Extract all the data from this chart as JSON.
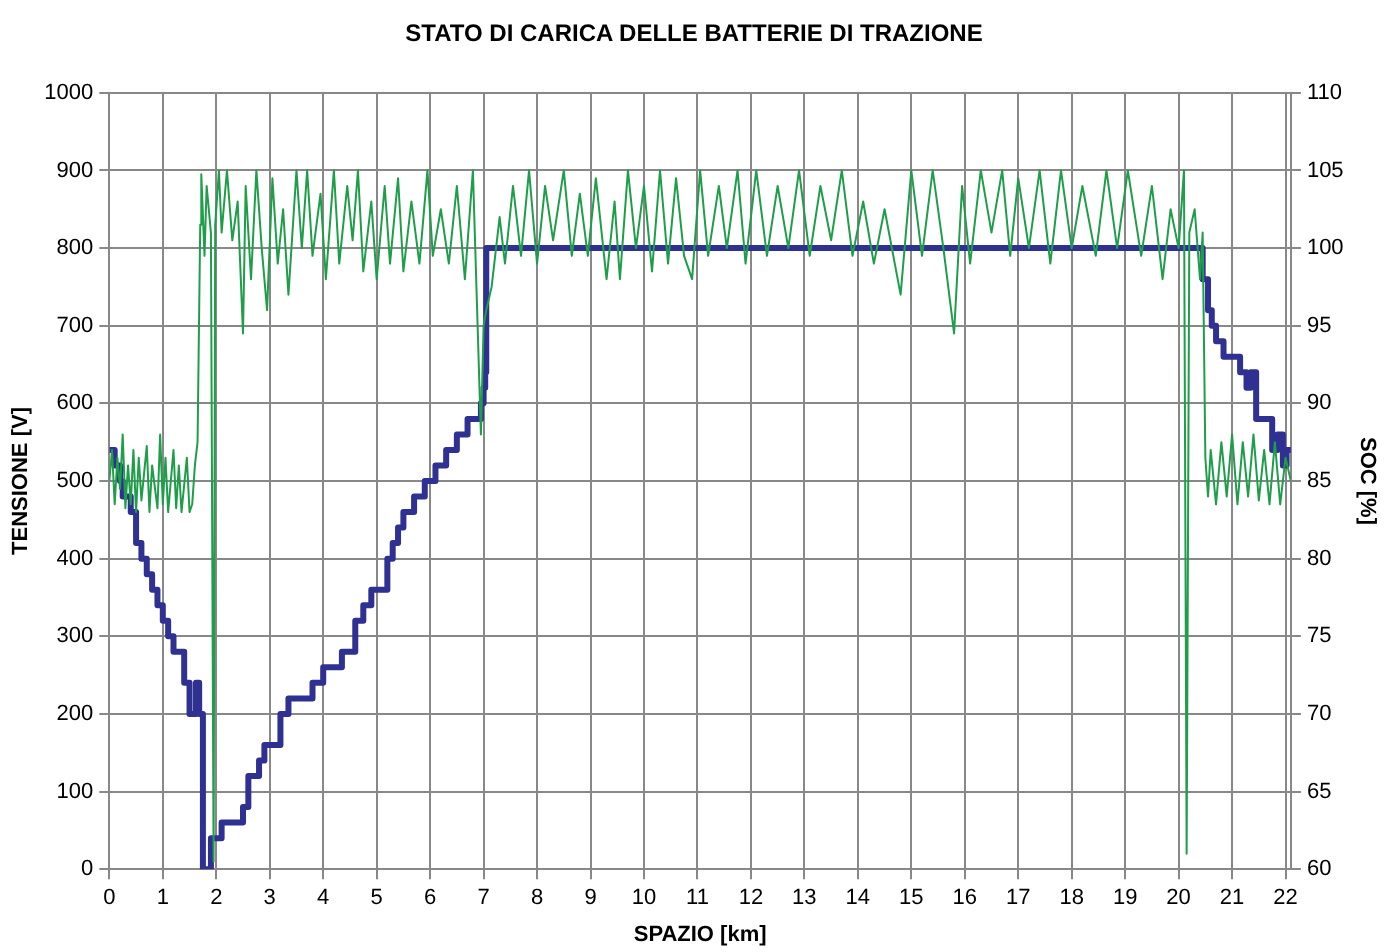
{
  "chart_data": {
    "type": "line",
    "title": "STATO DI CARICA DELLE BATTERIE DI TRAZIONE",
    "xlabel": "SPAZIO [km]",
    "ylabel": "TENSIONE [V]",
    "y2label": "SOC [%]",
    "xlim": [
      0,
      22.1
    ],
    "xticks": [
      0,
      1,
      2,
      3,
      4,
      5,
      6,
      7,
      8,
      9,
      10,
      11,
      12,
      13,
      14,
      15,
      16,
      17,
      18,
      19,
      20,
      21,
      22
    ],
    "ylim": [
      0,
      1000
    ],
    "yticks": [
      0,
      100,
      200,
      300,
      400,
      500,
      600,
      700,
      800,
      900,
      1000
    ],
    "y2lim": [
      60,
      110
    ],
    "y2ticks": [
      60,
      65,
      70,
      75,
      80,
      85,
      90,
      95,
      100,
      105,
      110
    ],
    "grid": true,
    "legend": false,
    "marker": "none",
    "line_style": "solid",
    "series": [
      {
        "type": "line",
        "color": "#1f9e4a",
        "x": [
          0,
          0.05,
          0.1,
          0.15,
          0.2,
          0.25,
          0.3,
          0.35,
          0.4,
          0.45,
          0.5,
          0.55,
          0.6,
          0.7,
          0.75,
          0.8,
          0.9,
          0.95,
          1.0,
          1.05,
          1.1,
          1.2,
          1.25,
          1.3,
          1.35,
          1.45,
          1.5,
          1.55,
          1.6,
          1.65,
          1.7,
          1.72,
          1.78,
          1.82,
          1.9,
          1.95,
          1.98,
          2.05,
          2.1,
          2.2,
          2.3,
          2.4,
          2.5,
          2.55,
          2.65,
          2.75,
          2.85,
          2.95,
          3.05,
          3.15,
          3.25,
          3.35,
          3.5,
          3.6,
          3.7,
          3.8,
          3.95,
          4.05,
          4.2,
          4.3,
          4.45,
          4.55,
          4.65,
          4.75,
          4.9,
          5.0,
          5.15,
          5.25,
          5.4,
          5.5,
          5.65,
          5.8,
          5.95,
          6.05,
          6.2,
          6.35,
          6.5,
          6.65,
          6.8,
          6.95,
          7.0,
          7.05,
          7.15,
          7.3,
          7.4,
          7.55,
          7.7,
          7.85,
          8.0,
          8.15,
          8.3,
          8.5,
          8.65,
          8.8,
          8.95,
          9.1,
          9.3,
          9.45,
          9.55,
          9.7,
          9.85,
          10.0,
          10.15,
          10.3,
          10.45,
          10.6,
          10.75,
          10.9,
          11.05,
          11.2,
          11.4,
          11.55,
          11.75,
          11.9,
          12.1,
          12.3,
          12.5,
          12.7,
          12.9,
          13.1,
          13.3,
          13.5,
          13.7,
          13.9,
          14.1,
          14.3,
          14.5,
          14.8,
          15.0,
          15.2,
          15.4,
          15.6,
          15.8,
          15.95,
          16.1,
          16.3,
          16.5,
          16.7,
          16.85,
          17.0,
          17.2,
          17.4,
          17.6,
          17.8,
          18.0,
          18.2,
          18.45,
          18.65,
          18.85,
          19.05,
          19.3,
          19.5,
          19.7,
          19.85,
          20.0,
          20.1,
          20.15,
          20.2,
          20.3,
          20.4,
          20.45,
          20.5,
          20.55,
          20.6,
          20.7,
          20.8,
          20.9,
          21.0,
          21.1,
          21.2,
          21.3,
          21.4,
          21.5,
          21.6,
          21.7,
          21.8,
          21.9,
          22.0,
          22.1
        ],
        "values": [
          500,
          540,
          470,
          530,
          490,
          560,
          465,
          520,
          470,
          540,
          460,
          530,
          475,
          545,
          460,
          520,
          465,
          560,
          470,
          530,
          460,
          540,
          465,
          520,
          460,
          530,
          460,
          470,
          520,
          550,
          830,
          895,
          790,
          880,
          820,
          10,
          830,
          900,
          820,
          900,
          810,
          860,
          690,
          880,
          760,
          900,
          800,
          720,
          890,
          780,
          850,
          740,
          900,
          800,
          900,
          790,
          870,
          760,
          900,
          780,
          880,
          810,
          900,
          770,
          860,
          760,
          880,
          780,
          890,
          770,
          860,
          780,
          900,
          790,
          850,
          780,
          880,
          760,
          900,
          560,
          700,
          720,
          750,
          840,
          780,
          880,
          790,
          900,
          780,
          880,
          810,
          900,
          790,
          870,
          790,
          890,
          760,
          860,
          760,
          900,
          800,
          880,
          770,
          900,
          780,
          890,
          790,
          760,
          900,
          790,
          880,
          800,
          900,
          780,
          900,
          790,
          880,
          800,
          900,
          790,
          880,
          810,
          900,
          790,
          860,
          780,
          850,
          740,
          900,
          790,
          900,
          800,
          690,
          880,
          780,
          900,
          820,
          900,
          790,
          890,
          800,
          900,
          780,
          900,
          800,
          880,
          790,
          900,
          800,
          900,
          790,
          880,
          760,
          850,
          800,
          900,
          20,
          820,
          850,
          760,
          820,
          530,
          480,
          540,
          470,
          550,
          480,
          560,
          470,
          550,
          480,
          560,
          475,
          540,
          470,
          550,
          470,
          530,
          500
        ]
      },
      {
        "type": "step",
        "axis": "y2",
        "color": "#2e3192",
        "x": [
          0,
          0.1,
          0.2,
          0.25,
          0.4,
          0.5,
          0.6,
          0.7,
          0.8,
          0.9,
          1.0,
          1.1,
          1.2,
          1.4,
          1.5,
          1.62,
          1.68,
          1.75,
          1.9,
          2.1,
          2.5,
          2.6,
          2.8,
          2.9,
          3.2,
          3.35,
          3.8,
          4.0,
          4.35,
          4.6,
          4.75,
          4.9,
          5.2,
          5.3,
          5.4,
          5.5,
          5.7,
          5.9,
          6.1,
          6.3,
          6.5,
          6.7,
          6.95,
          7.0,
          7.03,
          7.05,
          20.45,
          20.55,
          20.62,
          20.7,
          20.84,
          21.15,
          21.27,
          21.35,
          21.45,
          21.6,
          21.75,
          21.85,
          21.95,
          22.02,
          22.1
        ],
        "values": [
          87,
          86,
          85,
          84,
          83,
          81,
          80,
          79,
          78,
          77,
          76,
          75,
          74,
          72,
          70,
          72,
          70,
          60,
          62,
          63,
          64,
          66,
          67,
          68,
          70,
          71,
          72,
          73,
          74,
          76,
          77,
          78,
          80,
          81,
          82,
          83,
          84,
          85,
          86,
          87,
          88,
          89,
          90,
          91,
          92,
          100,
          98,
          96,
          95,
          94,
          93,
          92,
          91,
          92,
          89,
          89,
          87,
          88,
          86,
          87,
          87
        ]
      }
    ]
  }
}
